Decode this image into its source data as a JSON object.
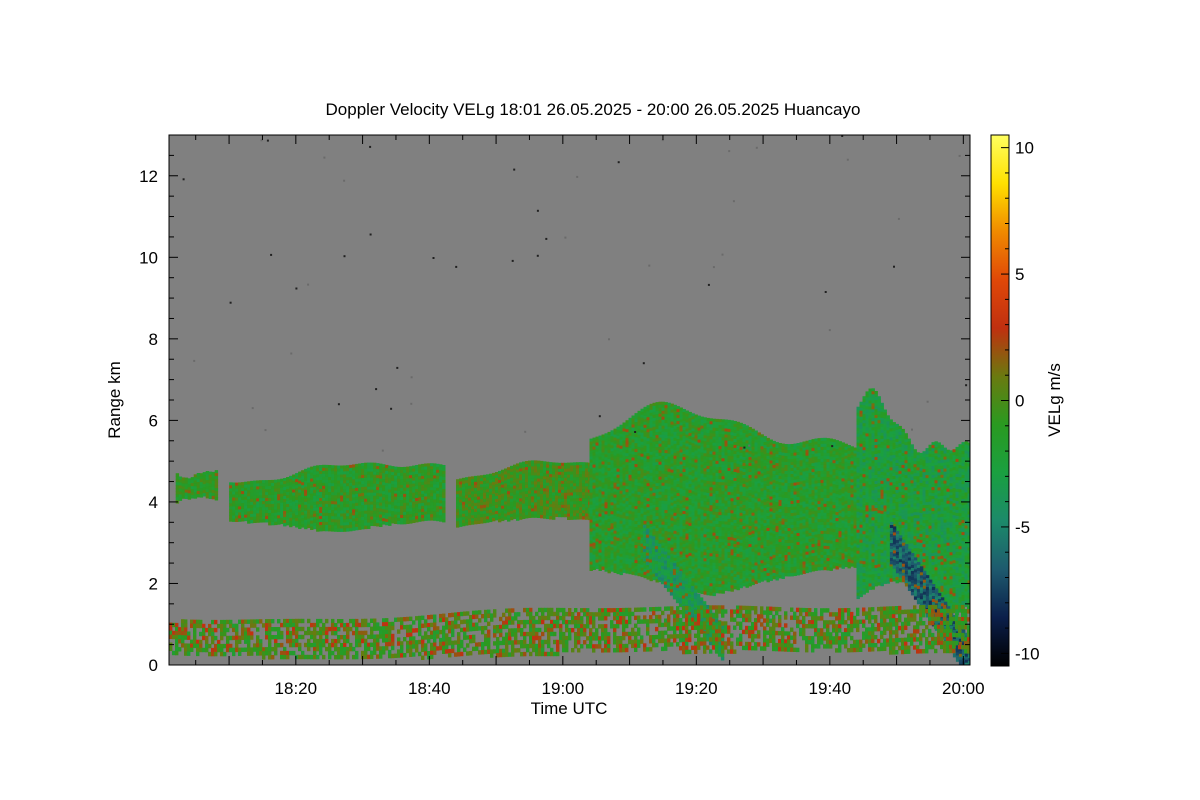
{
  "chart_data": {
    "type": "heatmap",
    "title": "Doppler Velocity VELg   18:01 26.05.2025 - 20:00 26.05.2025 Huancayo",
    "xlabel": "Time UTC",
    "ylabel": "Range km",
    "colorbar_label": "VELg m/s",
    "x_tick_labels": [
      "18:20",
      "18:40",
      "19:00",
      "19:20",
      "19:40",
      "20:00"
    ],
    "x_tick_minutes": [
      20,
      40,
      60,
      80,
      100,
      120
    ],
    "x_range_minutes": [
      1,
      121
    ],
    "y_ticks": [
      0,
      2,
      4,
      6,
      8,
      10,
      12
    ],
    "y_range": [
      0,
      13
    ],
    "colorbar_ticks": [
      -10,
      -5,
      0,
      5,
      10
    ],
    "colorbar_range": [
      -10.5,
      10.5
    ],
    "colormap": [
      "#000000",
      "#0b1f4a",
      "#1e5a6e",
      "#1c8a6a",
      "#1aa040",
      "#2a9a20",
      "#6a7a10",
      "#c03010",
      "#e04808",
      "#f08a00",
      "#ffe000",
      "#ffff60"
    ],
    "background_color": "#808080",
    "grid": false,
    "layers": [
      {
        "name": "upper-layer-west-1",
        "x": [
          2,
          8
        ],
        "y": [
          4.0,
          4.8
        ],
        "velocity": -1.2
      },
      {
        "name": "upper-layer-west-2",
        "x": [
          10,
          42
        ],
        "y": [
          3.2,
          5.0
        ],
        "velocity": -1.4
      },
      {
        "name": "upper-layer-mid",
        "x": [
          44,
          78
        ],
        "y": [
          3.3,
          5.0
        ],
        "velocity": -0.6
      },
      {
        "name": "upper-layer-east-deep",
        "x": [
          64,
          110
        ],
        "y": [
          1.5,
          6.2
        ],
        "velocity": -1.6
      },
      {
        "name": "upper-layer-far-east",
        "x": [
          104,
          121
        ],
        "y": [
          1.0,
          6.4
        ],
        "velocity": -2.5
      },
      {
        "name": "fallstreak-1",
        "x": [
          72,
          84
        ],
        "y": [
          0.5,
          3.0
        ],
        "velocity": -3.5
      },
      {
        "name": "fallstreak-2",
        "x": [
          109,
          121
        ],
        "y": [
          0.1,
          3.0
        ],
        "velocity": -6.5
      },
      {
        "name": "boundary-layer",
        "x": [
          1,
          121
        ],
        "y": [
          0.1,
          1.5
        ],
        "velocity": -0.5
      }
    ]
  }
}
